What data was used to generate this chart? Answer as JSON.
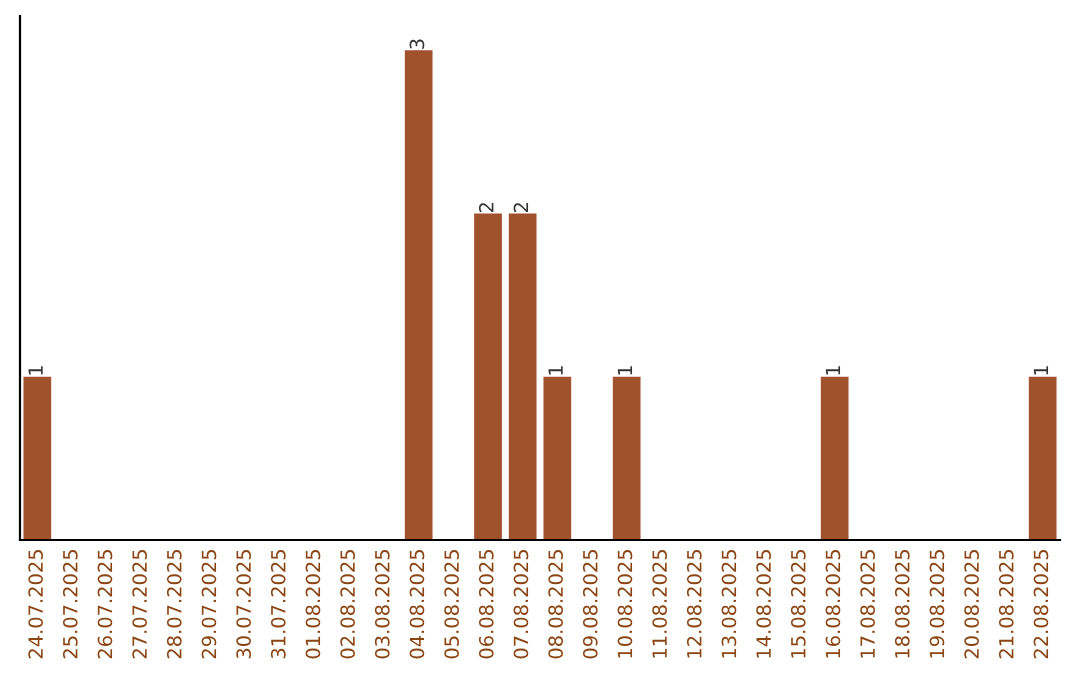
{
  "chart_data": {
    "type": "bar",
    "categories": [
      "24.07.2025",
      "25.07.2025",
      "26.07.2025",
      "27.07.2025",
      "28.07.2025",
      "29.07.2025",
      "30.07.2025",
      "31.07.2025",
      "01.08.2025",
      "02.08.2025",
      "03.08.2025",
      "04.08.2025",
      "05.08.2025",
      "06.08.2025",
      "07.08.2025",
      "08.08.2025",
      "09.08.2025",
      "10.08.2025",
      "11.08.2025",
      "12.08.2025",
      "13.08.2025",
      "14.08.2025",
      "15.08.2025",
      "16.08.2025",
      "17.08.2025",
      "18.08.2025",
      "19.08.2025",
      "20.08.2025",
      "21.08.2025",
      "22.08.2025"
    ],
    "values": [
      1,
      0,
      0,
      0,
      0,
      0,
      0,
      0,
      0,
      0,
      0,
      3,
      0,
      2,
      2,
      1,
      0,
      1,
      0,
      0,
      0,
      0,
      0,
      1,
      0,
      0,
      0,
      0,
      0,
      1
    ],
    "value_labels": [
      "1",
      null,
      null,
      null,
      null,
      null,
      null,
      null,
      null,
      null,
      null,
      "3",
      null,
      "2",
      "2",
      "1",
      null,
      "1",
      null,
      null,
      null,
      null,
      null,
      "1",
      null,
      null,
      null,
      null,
      null,
      "1"
    ],
    "color": "#a0522d",
    "tick_labels": "x",
    "grid": false,
    "legend": false
  }
}
